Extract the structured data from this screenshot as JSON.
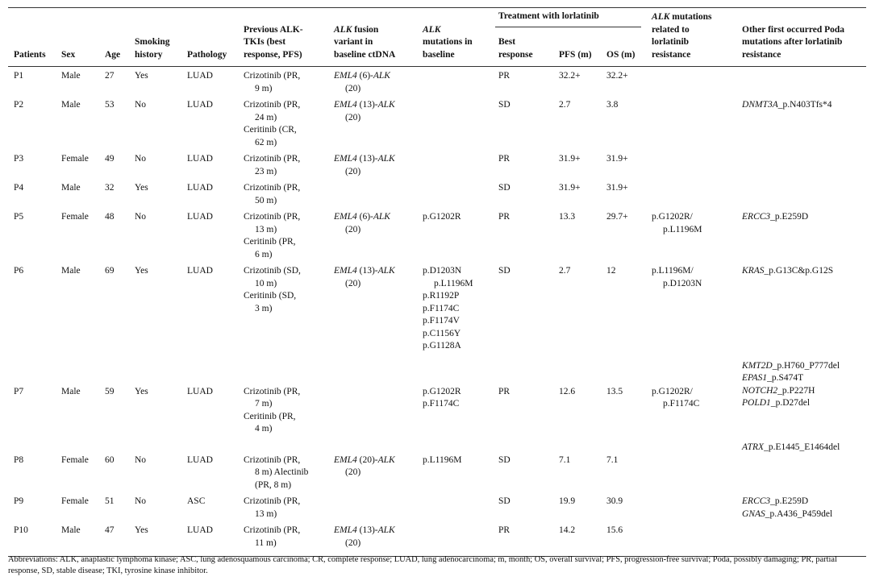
{
  "table": {
    "header": {
      "row1": [
        "Patients",
        "Sex",
        "Age",
        [
          "Smoking",
          "history"
        ],
        "Pathology",
        [
          "Previous ALK-",
          "TKIs (best",
          "response, PFS)"
        ],
        [
          [
            {
              "italic": "ALK"
            },
            " fusion"
          ],
          "variant in",
          "baseline ctDNA"
        ],
        [
          [
            {
              "italic": "ALK"
            }
          ],
          "mutations in",
          "baseline"
        ],
        "Treatment with lorlatinib",
        [
          [
            {
              "italic": "ALK"
            },
            " mutations"
          ],
          "related to",
          "lorlatinib",
          "resistance"
        ],
        [
          "Other first occurred Poda",
          "mutations after lorlatinib",
          "resistance"
        ]
      ],
      "row2": [
        [
          "Best",
          "response"
        ],
        "PFS (m)",
        "OS (m)"
      ]
    },
    "rows": [
      [
        "P1",
        "Male",
        27,
        "Yes",
        "LUAD",
        [
          [
            "Crizotinib (PR,",
            "9 m)"
          ]
        ],
        [
          [
            [
              {
                "italic": "EML4"
              },
              " (6)-",
              {
                "italic": "ALK"
              }
            ],
            "(20)"
          ]
        ],
        [],
        "PR",
        "32.2+",
        "32.2+",
        [],
        []
      ],
      [
        "P2",
        "Male",
        53,
        "No",
        "LUAD",
        [
          [
            "Crizotinib (PR,",
            "24 m)"
          ],
          [
            "Ceritinib (CR,",
            "62 m)"
          ]
        ],
        [
          [
            [
              {
                "italic": "EML4"
              },
              " (13)-",
              {
                "italic": "ALK"
              }
            ],
            "(20)"
          ]
        ],
        [],
        "SD",
        2.7,
        3.8,
        [],
        [
          [
            [
              {
                "italic": "DNMT3A"
              },
              "_p.N403Tfs*4"
            ]
          ]
        ]
      ],
      [
        "P3",
        "Female",
        49,
        "No",
        "LUAD",
        [
          [
            "Crizotinib (PR,",
            "23 m)"
          ]
        ],
        [
          [
            [
              {
                "italic": "EML4"
              },
              " (13)-",
              {
                "italic": "ALK"
              }
            ],
            "(20)"
          ]
        ],
        [],
        "PR",
        "31.9+",
        "31.9+",
        [],
        []
      ],
      [
        "P4",
        "Male",
        32,
        "Yes",
        "LUAD",
        [
          [
            "Crizotinib (PR,",
            "50 m)"
          ]
        ],
        [],
        [],
        "SD",
        "31.9+",
        "31.9+",
        [],
        []
      ],
      [
        "P5",
        "Female",
        48,
        "No",
        "LUAD",
        [
          [
            "Crizotinib (PR,",
            "13 m)"
          ],
          [
            "Ceritinib (PR,",
            "6 m)"
          ]
        ],
        [
          [
            [
              {
                "italic": "EML4"
              },
              " (6)-",
              {
                "italic": "ALK"
              }
            ],
            "(20)"
          ]
        ],
        "p.G1202R",
        "PR",
        13.3,
        "29.7+",
        [
          [
            "p.G1202R/",
            "p.L1196M"
          ]
        ],
        [
          [
            [
              {
                "italic": "ERCC3"
              },
              "_p.E259D"
            ]
          ]
        ]
      ],
      [
        "P6",
        "Male",
        69,
        "Yes",
        "LUAD",
        [
          [
            "Crizotinib (SD,",
            "10 m)"
          ],
          [
            "Ceritinib (SD,",
            "3 m)"
          ]
        ],
        [
          [
            [
              {
                "italic": "EML4"
              },
              " (13)-",
              {
                "italic": "ALK"
              }
            ],
            "(20)"
          ]
        ],
        [
          [
            "p.D1203N",
            "p.L1196M"
          ],
          [
            "p.R1192P"
          ],
          [
            "p.F1174C"
          ],
          [
            "p.F1174V"
          ],
          [
            "p.C1156Y"
          ],
          [
            "p.G1128A"
          ]
        ],
        "SD",
        2.7,
        12,
        [
          [
            "p.L1196M/",
            "p.D1203N"
          ]
        ],
        [
          [
            [
              {
                "italic": "KRAS"
              },
              "_p.G13C&p.G12S"
            ]
          ]
        ]
      ],
      [
        "P7",
        "Male",
        59,
        "Yes",
        "LUAD",
        [
          [
            "Crizotinib (PR,",
            "7 m)"
          ],
          [
            "Ceritinib (PR,",
            "4 m)"
          ]
        ],
        [],
        [
          [
            "p.G1202R"
          ],
          [
            "p.F1174C"
          ]
        ],
        "PR",
        12.6,
        13.5,
        [
          [
            "p.G1202R/",
            "p.F1174C"
          ]
        ],
        [
          [
            [
              {
                "italic": "KMT2D"
              },
              "_p.H760_P777del"
            ]
          ],
          [
            [
              {
                "italic": "EPAS1"
              },
              "_p.S474T"
            ]
          ],
          [
            [
              {
                "italic": "NOTCH2"
              },
              "_p.P227H"
            ]
          ],
          [
            [
              {
                "italic": "POLD1"
              },
              "_p.D27del"
            ]
          ]
        ]
      ],
      [
        "P8",
        "Female",
        60,
        "No",
        "LUAD",
        [
          [
            "Crizotinib (PR,",
            "8 m) Alectinib",
            "(PR, 8 m)"
          ]
        ],
        [
          [
            [
              {
                "italic": "EML4"
              },
              " (20)-",
              {
                "italic": "ALK"
              }
            ],
            "(20)"
          ]
        ],
        "p.L1196M",
        "SD",
        7.1,
        7.1,
        [],
        [
          [
            [
              {
                "italic": "ATRX"
              },
              "_p.E1445_E1464del"
            ]
          ]
        ]
      ],
      [
        "P9",
        "Female",
        51,
        "No",
        "ASC",
        [
          [
            "Crizotinib (PR,",
            "13 m)"
          ]
        ],
        [],
        [],
        "SD",
        19.9,
        30.9,
        [],
        [
          [
            [
              {
                "italic": "ERCC3"
              },
              "_p.E259D"
            ]
          ],
          [
            [
              {
                "italic": "GNAS"
              },
              "_p.A436_P459del"
            ]
          ]
        ]
      ],
      [
        "P10",
        "Male",
        47,
        "Yes",
        "LUAD",
        [
          [
            "Crizotinib (PR,",
            "11 m)"
          ]
        ],
        [
          [
            [
              {
                "italic": "EML4"
              },
              " (13)-",
              {
                "italic": "ALK"
              }
            ],
            "(20)"
          ]
        ],
        [],
        "PR",
        14.2,
        15.6,
        [],
        []
      ]
    ],
    "footnote": "Abbreviations: ALK, anaplastic lymphoma kinase; ASC, lung adenosquamous carcinoma; CR, complete response; LUAD, lung adenocarcinoma; m, month; OS, overall survival; PFS, progression-free survival; Poda, possibly damaging; PR, partial response, SD, stable disease; TKI, tyrosine kinase inhibitor."
  }
}
